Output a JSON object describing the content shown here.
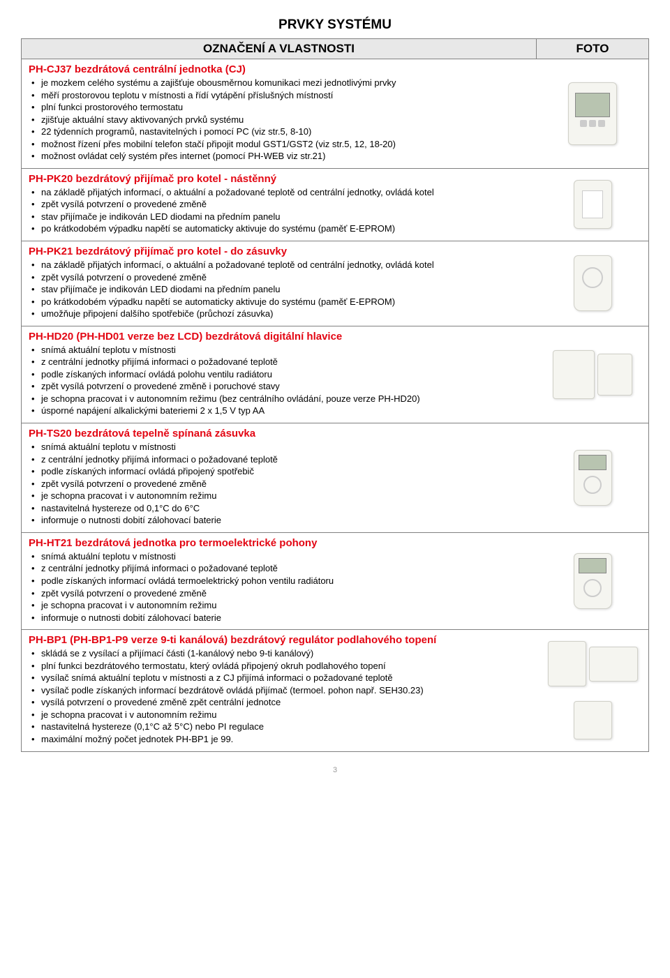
{
  "page_title": "PRVKY SYSTÉMU",
  "header_left": "OZNAČENÍ A VLASTNOSTI",
  "header_right": "FOTO",
  "title_fontsize": 19,
  "header_fontsize": 17,
  "section_title_fontsize": 15,
  "body_fontsize": 13,
  "title_color": "#e30613",
  "border_color": "#808080",
  "header_bg": "#e8e8e8",
  "page_number": "3",
  "sections": [
    {
      "title": "PH-CJ37 bezdrátová centrální jednotka (CJ)",
      "bullets": [
        "je mozkem celého systému a zajišťuje obousměrnou komunikaci mezi jednotlivými prvky",
        "měří prostorovou teplotu v místnosti a řídí vytápění příslušných místností",
        "plní funkci prostorového termostatu",
        "zjišťuje aktuální stavy aktivovaných prvků systému",
        "22 týdenních programů, nastavitelných i pomocí PC (viz str.5, 8-10)",
        "možnost řízení přes mobilní telefon stačí připojit modul GST1/GST2 (viz str.5, 12, 18-20)",
        "možnost ovládat celý systém přes internet (pomocí PH-WEB viz str.21)"
      ],
      "photo": "device-lcd"
    },
    {
      "title": "PH-PK20 bezdrátový přijímač pro kotel - nástěnný",
      "bullets": [
        "na základě přijatých informací, o aktuální a požadované teplotě od centrální jednotky, ovládá kotel",
        "zpět vysílá potvrzení o provedené změně",
        "stav přijímače je indikován LED diodami na předním panelu",
        "po krátkodobém výpadku napětí se automaticky aktivuje do systému (paměť E-EPROM)"
      ],
      "photo": "device-small"
    },
    {
      "title": "PH-PK21 bezdrátový přijímač pro kotel - do zásuvky",
      "bullets": [
        "na základě přijatých informací, o aktuální a požadované teplotě od centrální jednotky, ovládá kotel",
        "zpět vysílá potvrzení o provedené změně",
        "stav přijímače je indikován LED  diodami na předním panelu",
        "po krátkodobém výpadku napětí se automaticky aktivuje do systému (paměť E-EPROM)",
        "umožňuje připojení dalšího spotřebiče (průchozí zásuvka)"
      ],
      "photo": "plug"
    },
    {
      "title": "PH-HD20 (PH-HD01 verze bez LCD) bezdrátová digitální hlavice",
      "bullets": [
        "snímá aktuální teplotu v místnosti",
        "z centrální jednotky přijímá informaci o požadované teplotě",
        "podle získaných informací ovládá polohu ventilu radiátoru",
        "zpět vysílá potvrzení o provedené změně i poruchové stavy",
        "je schopna pracovat i v autonomním režimu (bez centrálního ovládání, pouze verze PH-HD20)",
        "úsporné napájení alkalickými bateriemi 2 x 1,5 V typ AA"
      ],
      "photo": "valve-pair"
    },
    {
      "title": "PH-TS20 bezdrátová tepelně spínaná zásuvka",
      "bullets": [
        "snímá aktuální teplotu v místnosti",
        "z centrální jednotky přijímá informaci o požadované teplotě",
        "podle získaných informací ovládá připojený spotřebič",
        "zpět vysílá potvrzení o provedené změně",
        "je schopna pracovat i v autonomním režimu",
        "nastavitelná hystereze od 0,1°C do 6°C",
        "informuje o nutnosti dobití zálohovací baterie"
      ],
      "photo": "plug-lcd"
    },
    {
      "title": "PH-HT21 bezdrátová jednotka pro termoelektrické pohony",
      "bullets": [
        "snímá aktuální teplotu v místnosti",
        "z centrální jednotky přijímá informaci o požadované teplotě",
        "podle získaných informací ovládá termoelektrický pohon ventilu radiátoru",
        "zpět vysílá potvrzení o provedené změně",
        "je schopna pracovat i v autonomním režimu",
        "informuje o nutnosti dobití zálohovací baterie"
      ],
      "photo": "plug-lcd"
    },
    {
      "title": "PH-BP1 (PH-BP1-P9 verze 9-ti kanálová) bezdrátový regulátor podlahového topení",
      "bullets": [
        "skládá se z vysílací a přijímací části (1-kanálový nebo 9-ti kanálový)",
        "plní funkci bezdrátového termostatu, který ovládá připojený okruh podlahového topení",
        "vysílač snímá aktuální teplotu v místnosti a z CJ přijímá informaci o požadované teplotě",
        "vysílač podle získaných informací bezdrátově ovládá přijímač (termoel. pohon např. SEH30.23)",
        "vysílá potvrzení o provedené změně zpět centrální jednotce",
        "je schopna pracovat i v autonomním režimu",
        "nastavitelná hystereze (0,1°C až 5°C) nebo PI regulace",
        "maximální možný počet jednotek PH-BP1 je 99."
      ],
      "photo": "multi"
    }
  ]
}
